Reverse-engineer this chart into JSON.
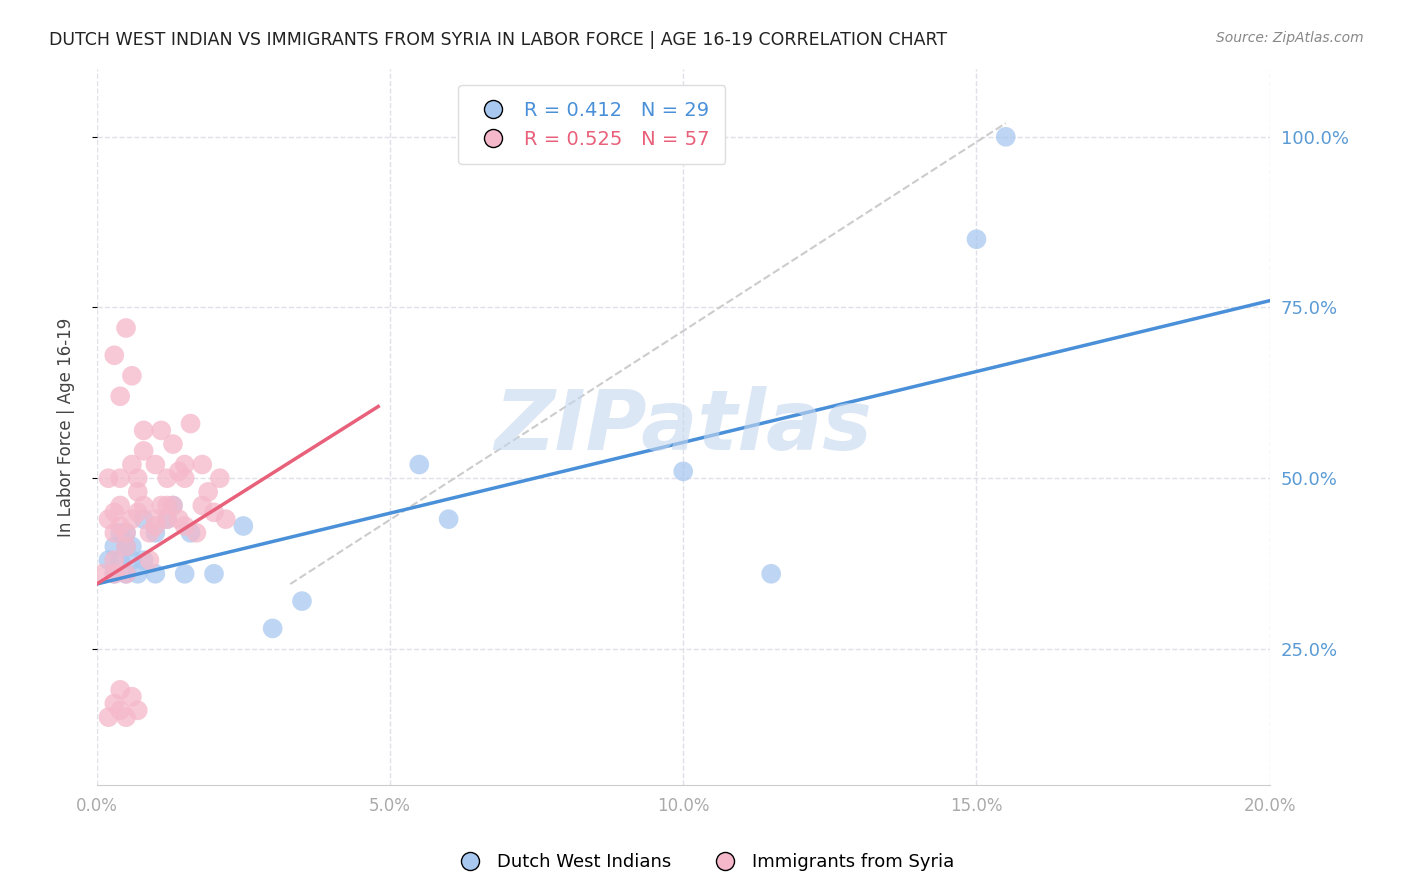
{
  "title": "DUTCH WEST INDIAN VS IMMIGRANTS FROM SYRIA IN LABOR FORCE | AGE 16-19 CORRELATION CHART",
  "source": "Source: ZipAtlas.com",
  "ylabel": "In Labor Force | Age 16-19",
  "r_blue": 0.412,
  "n_blue": 29,
  "r_pink": 0.525,
  "n_pink": 57,
  "blue_color": "#A8C8F0",
  "pink_color": "#F5B8CA",
  "blue_line_color": "#4A90D9",
  "pink_line_color": "#E8607A",
  "ref_line_color": "#CCCCCC",
  "right_axis_color": "#5B9BD5",
  "watermark_color": "#C5D8F0",
  "blue_x": [
    0.002,
    0.003,
    0.003,
    0.004,
    0.004,
    0.005,
    0.005,
    0.005,
    0.006,
    0.006,
    0.007,
    0.008,
    0.008,
    0.01,
    0.01,
    0.012,
    0.013,
    0.015,
    0.016,
    0.02,
    0.025,
    0.03,
    0.035,
    0.055,
    0.06,
    0.1,
    0.115,
    0.15,
    0.155
  ],
  "blue_y": [
    0.38,
    0.4,
    0.36,
    0.38,
    0.42,
    0.4,
    0.36,
    0.42,
    0.38,
    0.4,
    0.36,
    0.44,
    0.38,
    0.36,
    0.42,
    0.44,
    0.46,
    0.36,
    0.42,
    0.36,
    0.43,
    0.28,
    0.32,
    0.52,
    0.44,
    0.51,
    0.36,
    0.85,
    1.0
  ],
  "pink_x": [
    0.001,
    0.002,
    0.002,
    0.003,
    0.003,
    0.003,
    0.003,
    0.004,
    0.004,
    0.004,
    0.005,
    0.005,
    0.005,
    0.006,
    0.006,
    0.007,
    0.007,
    0.008,
    0.008,
    0.009,
    0.009,
    0.01,
    0.01,
    0.011,
    0.011,
    0.012,
    0.012,
    0.013,
    0.013,
    0.014,
    0.014,
    0.015,
    0.015,
    0.016,
    0.017,
    0.018,
    0.019,
    0.02,
    0.021,
    0.022,
    0.003,
    0.004,
    0.005,
    0.006,
    0.007,
    0.008,
    0.01,
    0.012,
    0.015,
    0.018,
    0.002,
    0.003,
    0.004,
    0.004,
    0.005,
    0.006,
    0.007
  ],
  "pink_y": [
    0.36,
    0.44,
    0.5,
    0.42,
    0.45,
    0.38,
    0.36,
    0.43,
    0.46,
    0.5,
    0.4,
    0.36,
    0.42,
    0.44,
    0.52,
    0.45,
    0.5,
    0.54,
    0.57,
    0.38,
    0.42,
    0.43,
    0.52,
    0.46,
    0.57,
    0.44,
    0.5,
    0.55,
    0.46,
    0.51,
    0.44,
    0.52,
    0.5,
    0.58,
    0.42,
    0.52,
    0.48,
    0.45,
    0.5,
    0.44,
    0.68,
    0.62,
    0.72,
    0.65,
    0.48,
    0.46,
    0.44,
    0.46,
    0.43,
    0.46,
    0.15,
    0.17,
    0.16,
    0.19,
    0.15,
    0.18,
    0.16
  ],
  "blue_line_x": [
    0.0,
    0.2
  ],
  "blue_line_y": [
    0.345,
    0.76
  ],
  "pink_line_x": [
    0.0,
    0.048
  ],
  "pink_line_y": [
    0.345,
    0.605
  ],
  "ref_line_x": [
    0.033,
    0.155
  ],
  "ref_line_y": [
    0.345,
    1.02
  ],
  "xlim": [
    0.0,
    0.2
  ],
  "ylim": [
    0.05,
    1.1
  ],
  "yticks_right": [
    0.25,
    0.5,
    0.75,
    1.0
  ],
  "xticks": [
    0.0,
    0.05,
    0.1,
    0.15,
    0.2
  ],
  "background_color": "#FFFFFF",
  "grid_color": "#E0E0E8"
}
